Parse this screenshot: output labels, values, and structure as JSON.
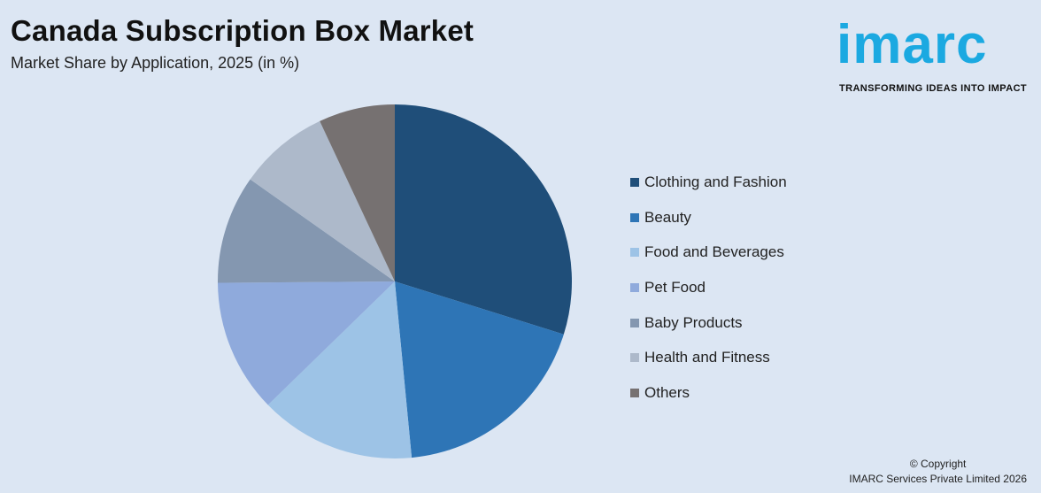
{
  "header": {
    "title": "Canada Subscription Box Market",
    "subtitle": "Market Share by Application, 2025 (in %)"
  },
  "logo": {
    "word": "imarc",
    "tagline": "TRANSFORMING IDEAS INTO IMPACT",
    "color": "#1ba9e1"
  },
  "chart_data": {
    "type": "pie",
    "title": "Canada Subscription Box Market",
    "subtitle": "Market Share by Application, 2025 (in %)",
    "legend_position": "right",
    "start_angle_deg": 0,
    "direction": "clockwise",
    "slices": [
      {
        "label": "Clothing and Fashion",
        "value": 30.4,
        "color": "#1f4e79"
      },
      {
        "label": "Beauty",
        "value": 19.0,
        "color": "#2e75b6"
      },
      {
        "label": "Food and Beverages",
        "value": 14.5,
        "color": "#9dc3e6"
      },
      {
        "label": "Pet Food",
        "value": 12.4,
        "color": "#8faadc"
      },
      {
        "label": "Baby Products",
        "value": 10.1,
        "color": "#8497b0"
      },
      {
        "label": "Health and Fitness",
        "value": 8.4,
        "color": "#adb9ca"
      },
      {
        "label": "Others",
        "value": 7.1,
        "color": "#767171"
      }
    ]
  },
  "footer": {
    "copyright_line1": "© Copyright",
    "copyright_line2": "IMARC Services Private Limited 2026"
  }
}
